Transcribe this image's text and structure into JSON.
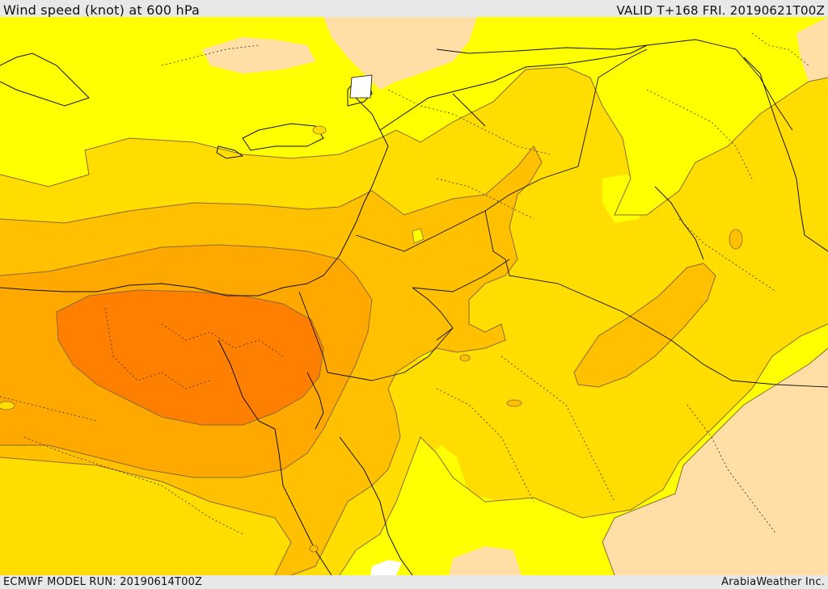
{
  "header": {
    "title": "Wind speed (knot) at 600 hPa",
    "valid": "VALID T+168 FRI. 20190621T00Z"
  },
  "footer": {
    "model_run": "ECMWF MODEL RUN: 20190614T00Z",
    "brand": "ArabiaWeather Inc."
  },
  "map": {
    "fill_colors": {
      "lowest": "#ffdfa6",
      "low": "#ffff00",
      "moderate": "#ffdd00",
      "elevated": "#ffc000",
      "high": "#ffa800",
      "highest": "#ff7f00"
    },
    "contour_color": "#8a6a3a",
    "coastline_color": "#111111",
    "background_water_land": "#ffff00"
  }
}
